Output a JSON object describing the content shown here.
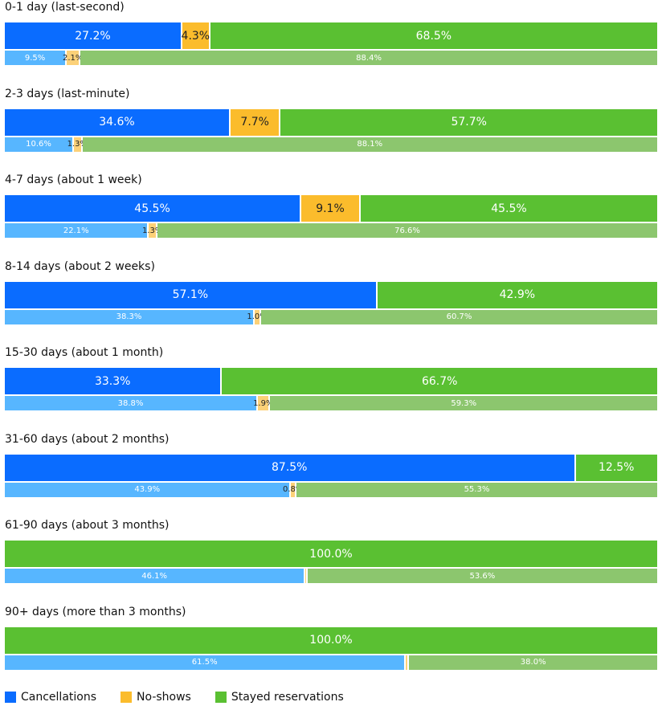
{
  "chart_data": {
    "type": "stacked-bar",
    "series": [
      {
        "name": "Cancellations",
        "color": "#0a6cff",
        "detail_color": "#57b6ff",
        "text_color": "#ffffff"
      },
      {
        "name": "No-shows",
        "color": "#fbbc2c",
        "detail_color": "#fcd178",
        "text_color": "#222222"
      },
      {
        "name": "Stayed reservations",
        "color": "#5ac032",
        "detail_color": "#8cc66e",
        "text_color": "#ffffff"
      }
    ],
    "groups": [
      {
        "title": "0-1 day (last-second)",
        "values": [
          27.2,
          4.3,
          68.5
        ],
        "value_labels": [
          "27.2%",
          "4.3%",
          "68.5%"
        ],
        "detail_values": [
          9.5,
          2.1,
          88.4
        ],
        "detail_value_labels": [
          "9.5%",
          "2.1%",
          "88.4%"
        ]
      },
      {
        "title": "2-3 days (last-minute)",
        "values": [
          34.6,
          7.7,
          57.7
        ],
        "value_labels": [
          "34.6%",
          "7.7%",
          "57.7%"
        ],
        "detail_values": [
          10.6,
          1.3,
          88.1
        ],
        "detail_value_labels": [
          "10.6%",
          "1.3%",
          "88.1%"
        ]
      },
      {
        "title": "4-7 days (about 1 week)",
        "values": [
          45.5,
          9.1,
          45.5
        ],
        "value_labels": [
          "45.5%",
          "9.1%",
          "45.5%"
        ],
        "detail_values": [
          22.1,
          1.3,
          76.6
        ],
        "detail_value_labels": [
          "22.1%",
          "1.3%",
          "76.6%"
        ]
      },
      {
        "title": "8-14 days (about 2 weeks)",
        "values": [
          57.1,
          0,
          42.9
        ],
        "value_labels": [
          "57.1%",
          null,
          "42.9%"
        ],
        "detail_values": [
          38.3,
          1.0,
          60.7
        ],
        "detail_value_labels": [
          "38.3%",
          "1.0%",
          "60.7%"
        ]
      },
      {
        "title": "15-30 days (about 1 month)",
        "values": [
          33.3,
          0,
          66.7
        ],
        "value_labels": [
          "33.3%",
          null,
          "66.7%"
        ],
        "detail_values": [
          38.8,
          1.9,
          59.3
        ],
        "detail_value_labels": [
          "38.8%",
          "1.9%",
          "59.3%"
        ]
      },
      {
        "title": "31-60 days (about 2 months)",
        "values": [
          87.5,
          0,
          12.5
        ],
        "value_labels": [
          "87.5%",
          null,
          "12.5%"
        ],
        "detail_values": [
          43.9,
          0.8,
          55.3
        ],
        "detail_value_labels": [
          "43.9%",
          "0.8%",
          "55.3%"
        ]
      },
      {
        "title": "61-90 days (about 3 months)",
        "values": [
          0,
          0,
          100.0
        ],
        "value_labels": [
          null,
          null,
          "100.0%"
        ],
        "detail_values": [
          46.1,
          0.3,
          53.6
        ],
        "detail_value_labels": [
          "46.1%",
          null,
          "53.6%"
        ]
      },
      {
        "title": "90+ days (more than 3 months)",
        "values": [
          0,
          0,
          100.0
        ],
        "value_labels": [
          null,
          null,
          "100.0%"
        ],
        "detail_values": [
          61.5,
          0.5,
          38.0
        ],
        "detail_value_labels": [
          "61.5%",
          null,
          "38.0%"
        ]
      }
    ]
  }
}
